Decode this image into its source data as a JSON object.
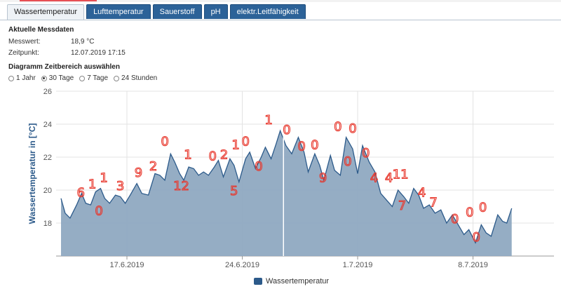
{
  "tabs": [
    {
      "label": "Wassertemperatur",
      "active": true
    },
    {
      "label": "Lufttemperatur",
      "active": false
    },
    {
      "label": "Sauerstoff",
      "active": false
    },
    {
      "label": "pH",
      "active": false
    },
    {
      "label": "elektr.Leitfähigkeit",
      "active": false
    }
  ],
  "current": {
    "title": "Aktuelle Messdaten",
    "value_label": "Messwert:",
    "value": "18,9 °C",
    "time_label": "Zeitpunkt:",
    "time": "12.07.2019 17:15"
  },
  "range": {
    "title": "Diagramm Zeitbereich auswählen",
    "options": [
      "1 Jahr",
      "30 Tage",
      "7 Tage",
      "24 Stunden"
    ],
    "selected": "30 Tage"
  },
  "colors": {
    "tab": "#2c6298",
    "area_fill": "#8fa9c1",
    "area_line": "#2c5a8a",
    "annotation": "#e8372c"
  },
  "chart_data": {
    "type": "area",
    "ylabel": "Wassertemperatur in [°C]",
    "ylim": [
      16.0,
      26.0
    ],
    "yticks": [
      18,
      20,
      22,
      24,
      26
    ],
    "xtick_labels": [
      "17.6.2019",
      "24.6.2019",
      "1.7.2019",
      "8.7.2019"
    ],
    "grid": true,
    "legend": "bottom-center",
    "series": [
      {
        "name": "Wassertemperatur",
        "x_start": "2019-06-13",
        "x_end": "2019-07-12",
        "points": [
          [
            0.0,
            19.5
          ],
          [
            0.25,
            18.6
          ],
          [
            0.55,
            18.3
          ],
          [
            0.95,
            19.1
          ],
          [
            1.25,
            19.8
          ],
          [
            1.5,
            19.2
          ],
          [
            1.8,
            19.1
          ],
          [
            2.1,
            19.9
          ],
          [
            2.4,
            20.1
          ],
          [
            2.65,
            19.5
          ],
          [
            2.95,
            19.2
          ],
          [
            3.3,
            19.7
          ],
          [
            3.6,
            19.6
          ],
          [
            3.9,
            19.2
          ],
          [
            4.2,
            19.7
          ],
          [
            4.6,
            20.4
          ],
          [
            4.9,
            19.8
          ],
          [
            5.3,
            19.7
          ],
          [
            5.7,
            21.0
          ],
          [
            6.0,
            20.9
          ],
          [
            6.3,
            20.6
          ],
          [
            6.65,
            22.2
          ],
          [
            6.9,
            21.7
          ],
          [
            7.2,
            21.0
          ],
          [
            7.45,
            20.6
          ],
          [
            7.75,
            21.4
          ],
          [
            8.05,
            21.3
          ],
          [
            8.35,
            20.9
          ],
          [
            8.65,
            21.1
          ],
          [
            8.95,
            20.9
          ],
          [
            9.3,
            21.4
          ],
          [
            9.55,
            21.8
          ],
          [
            9.85,
            20.8
          ],
          [
            10.25,
            21.9
          ],
          [
            10.5,
            21.5
          ],
          [
            10.8,
            20.5
          ],
          [
            11.2,
            21.9
          ],
          [
            11.45,
            22.3
          ],
          [
            11.8,
            21.3
          ],
          [
            12.15,
            22.0
          ],
          [
            12.4,
            22.6
          ],
          [
            12.75,
            21.9
          ],
          [
            13.05,
            22.8
          ],
          [
            13.3,
            23.6
          ],
          [
            13.65,
            22.7
          ],
          [
            14.0,
            22.2
          ],
          [
            14.4,
            23.2
          ],
          [
            14.75,
            22.3
          ],
          [
            15.0,
            21.1
          ],
          [
            15.4,
            22.2
          ],
          [
            15.7,
            21.5
          ],
          [
            15.95,
            20.6
          ],
          [
            16.35,
            22.1
          ],
          [
            16.6,
            21.2
          ],
          [
            16.95,
            20.9
          ],
          [
            17.3,
            23.2
          ],
          [
            17.7,
            22.5
          ],
          [
            18.0,
            21.0
          ],
          [
            18.3,
            22.7
          ],
          [
            18.7,
            21.7
          ],
          [
            19.05,
            21.1
          ],
          [
            19.4,
            19.8
          ],
          [
            19.75,
            19.4
          ],
          [
            20.1,
            19.0
          ],
          [
            20.45,
            20.0
          ],
          [
            20.8,
            19.6
          ],
          [
            21.1,
            19.2
          ],
          [
            21.4,
            20.1
          ],
          [
            21.7,
            19.7
          ],
          [
            22.0,
            18.9
          ],
          [
            22.35,
            19.1
          ],
          [
            22.7,
            18.6
          ],
          [
            23.05,
            18.8
          ],
          [
            23.4,
            18.0
          ],
          [
            23.75,
            18.5
          ],
          [
            24.1,
            17.9
          ],
          [
            24.45,
            17.3
          ],
          [
            24.75,
            17.6
          ],
          [
            25.15,
            16.8
          ],
          [
            25.5,
            17.9
          ],
          [
            25.8,
            17.4
          ],
          [
            26.1,
            17.2
          ],
          [
            26.5,
            18.5
          ],
          [
            26.8,
            18.1
          ],
          [
            27.05,
            18.0
          ],
          [
            27.35,
            18.9
          ]
        ]
      }
    ],
    "crosshair_day": 13.5
  },
  "annotations": [
    {
      "text": "6",
      "x": 1.2,
      "t": 19.6
    },
    {
      "text": "1",
      "x": 1.9,
      "t": 20.1
    },
    {
      "text": "1",
      "x": 2.6,
      "t": 20.5
    },
    {
      "text": "3",
      "x": 3.6,
      "t": 20.0
    },
    {
      "text": "0",
      "x": 2.3,
      "t": 18.5
    },
    {
      "text": "9",
      "x": 4.7,
      "t": 20.8
    },
    {
      "text": "2",
      "x": 5.6,
      "t": 21.2
    },
    {
      "text": "0",
      "x": 6.3,
      "t": 22.7
    },
    {
      "text": "12",
      "x": 7.3,
      "t": 20.0
    },
    {
      "text": "1",
      "x": 7.7,
      "t": 21.9
    },
    {
      "text": "0",
      "x": 9.2,
      "t": 21.8
    },
    {
      "text": "2",
      "x": 9.9,
      "t": 21.9
    },
    {
      "text": "1",
      "x": 10.6,
      "t": 22.5
    },
    {
      "text": "0",
      "x": 11.2,
      "t": 22.7
    },
    {
      "text": "5",
      "x": 10.5,
      "t": 19.7
    },
    {
      "text": "0",
      "x": 12.0,
      "t": 21.2
    },
    {
      "text": "1",
      "x": 12.6,
      "t": 24.0
    },
    {
      "text": "0",
      "x": 13.7,
      "t": 23.4
    },
    {
      "text": "0",
      "x": 14.6,
      "t": 22.4
    },
    {
      "text": "0",
      "x": 15.4,
      "t": 22.5
    },
    {
      "text": "9",
      "x": 15.9,
      "t": 20.5
    },
    {
      "text": "0",
      "x": 16.8,
      "t": 23.6
    },
    {
      "text": "0",
      "x": 17.7,
      "t": 23.5
    },
    {
      "text": "0",
      "x": 17.4,
      "t": 21.5
    },
    {
      "text": "0",
      "x": 18.5,
      "t": 22.0
    },
    {
      "text": "4",
      "x": 19.0,
      "t": 20.5
    },
    {
      "text": "4",
      "x": 19.9,
      "t": 20.5
    },
    {
      "text": "11",
      "x": 20.6,
      "t": 20.7
    },
    {
      "text": "7",
      "x": 20.7,
      "t": 18.8
    },
    {
      "text": "4",
      "x": 21.9,
      "t": 19.6
    },
    {
      "text": "7",
      "x": 22.6,
      "t": 19.0
    },
    {
      "text": "0",
      "x": 23.9,
      "t": 18.0
    },
    {
      "text": "0",
      "x": 24.8,
      "t": 18.4
    },
    {
      "text": "0",
      "x": 25.6,
      "t": 18.7
    },
    {
      "text": "0",
      "x": 25.2,
      "t": 16.9
    }
  ]
}
